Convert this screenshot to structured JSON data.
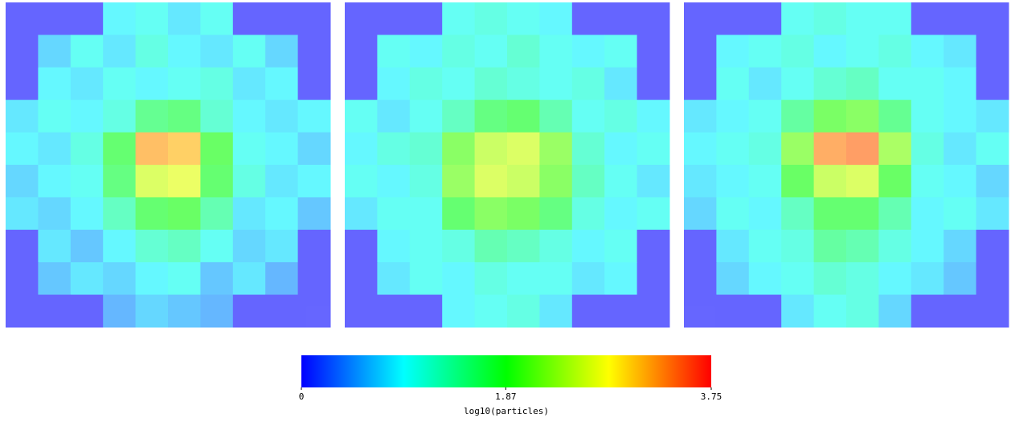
{
  "chart_data": {
    "type": "heatmap",
    "colormap": [
      "#0000ff",
      "#00ffff",
      "#00ff00",
      "#ffff00",
      "#ff0000"
    ],
    "opacity": 0.6,
    "clim": [
      0,
      3.75
    ],
    "cticks": [
      0,
      1.87,
      3.75
    ],
    "clabel": "log10(particles)",
    "panels": [
      {
        "values": [
          [
            0,
            0,
            0,
            0.9,
            1.0,
            0.8,
            1.0,
            0,
            0,
            0
          ],
          [
            0,
            0.7,
            1.0,
            0.8,
            1.1,
            0.9,
            0.8,
            1.0,
            0.7,
            0
          ],
          [
            0,
            0.9,
            0.8,
            1.0,
            0.9,
            1.0,
            1.1,
            0.8,
            0.9,
            0
          ],
          [
            0.8,
            1.0,
            0.9,
            1.1,
            1.6,
            1.7,
            1.2,
            0.9,
            0.8,
            0.9
          ],
          [
            0.9,
            0.8,
            1.1,
            1.8,
            3.2,
            3.1,
            1.9,
            1.0,
            0.9,
            0.7
          ],
          [
            0.7,
            0.9,
            1.0,
            1.7,
            2.6,
            2.7,
            1.8,
            1.1,
            0.8,
            0.9
          ],
          [
            0.8,
            0.7,
            0.9,
            1.3,
            1.8,
            1.9,
            1.4,
            0.8,
            0.9,
            0.6
          ],
          [
            0,
            0.8,
            0.6,
            0.9,
            1.2,
            1.3,
            1.0,
            0.7,
            0.8,
            0
          ],
          [
            0,
            0.6,
            0.8,
            0.7,
            0.9,
            1.0,
            0.6,
            0.8,
            0.5,
            0
          ],
          [
            0,
            0,
            0,
            0.5,
            0.7,
            0.6,
            0.5,
            0,
            0,
            0
          ]
        ]
      },
      {
        "values": [
          [
            0,
            0,
            0,
            1.0,
            1.1,
            1.0,
            0.9,
            0,
            0,
            0
          ],
          [
            0,
            1.0,
            0.9,
            1.1,
            1.0,
            1.2,
            1.0,
            0.9,
            1.0,
            0
          ],
          [
            0,
            0.9,
            1.1,
            1.0,
            1.2,
            1.1,
            1.0,
            1.1,
            0.8,
            0
          ],
          [
            1.0,
            0.8,
            1.0,
            1.3,
            1.7,
            1.8,
            1.4,
            1.0,
            1.1,
            0.9
          ],
          [
            0.9,
            1.1,
            1.2,
            2.1,
            2.5,
            2.6,
            2.2,
            1.2,
            0.9,
            1.0
          ],
          [
            1.0,
            0.9,
            1.1,
            2.2,
            2.6,
            2.5,
            2.1,
            1.3,
            1.0,
            0.8
          ],
          [
            0.8,
            1.0,
            1.0,
            1.8,
            2.1,
            2.0,
            1.7,
            1.1,
            0.9,
            1.0
          ],
          [
            0,
            0.9,
            1.0,
            1.1,
            1.4,
            1.3,
            1.1,
            0.9,
            1.0,
            0
          ],
          [
            0,
            0.8,
            1.0,
            0.9,
            1.1,
            1.0,
            1.0,
            0.8,
            0.9,
            0
          ],
          [
            0,
            0,
            0,
            0.9,
            1.0,
            1.1,
            0.8,
            0,
            0,
            0
          ]
        ]
      },
      {
        "values": [
          [
            0,
            0,
            0,
            1.0,
            1.1,
            1.0,
            1.0,
            0,
            0,
            0
          ],
          [
            0,
            0.9,
            1.0,
            1.1,
            0.9,
            1.0,
            1.1,
            0.9,
            0.8,
            0
          ],
          [
            0,
            1.0,
            0.8,
            1.0,
            1.2,
            1.3,
            1.0,
            1.0,
            0.9,
            0
          ],
          [
            0.8,
            0.9,
            1.0,
            1.5,
            2.0,
            2.1,
            1.6,
            1.0,
            0.9,
            0.8
          ],
          [
            0.9,
            1.0,
            1.1,
            2.2,
            3.3,
            3.4,
            2.3,
            1.1,
            0.8,
            1.0
          ],
          [
            0.8,
            0.9,
            1.0,
            1.9,
            2.5,
            2.6,
            1.9,
            1.0,
            0.9,
            0.7
          ],
          [
            0.7,
            1.0,
            0.9,
            1.3,
            1.8,
            1.8,
            1.4,
            0.9,
            1.0,
            0.8
          ],
          [
            0,
            0.8,
            1.0,
            1.1,
            1.5,
            1.4,
            1.1,
            0.9,
            0.7,
            0
          ],
          [
            0,
            0.7,
            0.9,
            1.0,
            1.2,
            1.1,
            0.9,
            0.8,
            0.6,
            0
          ],
          [
            0,
            0,
            0,
            0.8,
            1.0,
            1.1,
            0.7,
            0,
            0,
            0
          ]
        ]
      }
    ]
  }
}
